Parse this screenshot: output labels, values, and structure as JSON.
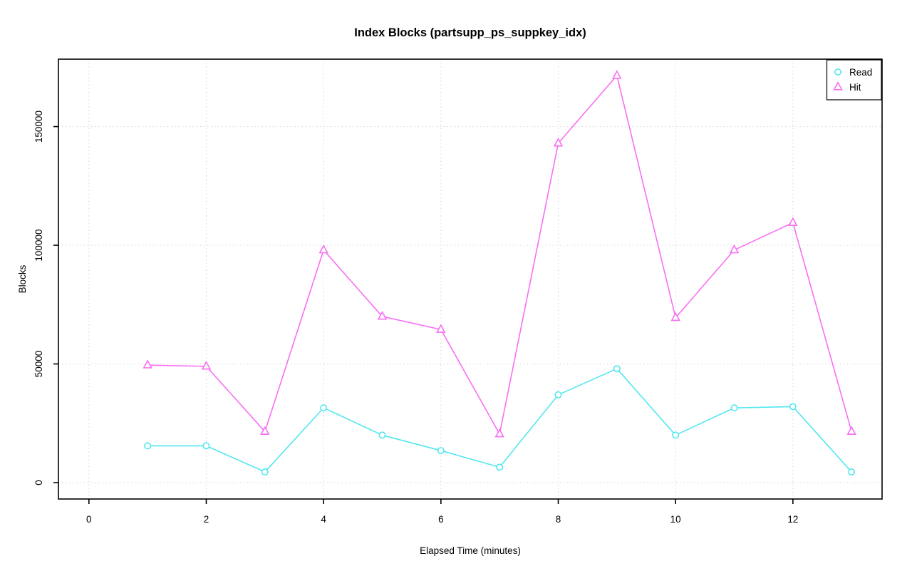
{
  "figure": {
    "background": "#ffffff",
    "axis_color": "#000000",
    "text_color": "#000000",
    "grid_color": "#d6d6d6"
  },
  "chart_data": {
    "type": "line",
    "title": "Index Blocks (partsupp_ps_suppkey_idx)",
    "xlabel": "Elapsed Time (minutes)",
    "ylabel": "Blocks",
    "x": [
      1,
      2,
      3,
      4,
      5,
      6,
      7,
      8,
      9,
      10,
      11,
      12,
      13
    ],
    "series": [
      {
        "name": "Read",
        "marker": "circle",
        "color": "#52E7EF",
        "values": [
          15500,
          15500,
          4500,
          31500,
          20000,
          13500,
          6500,
          37000,
          48000,
          20000,
          31500,
          32000,
          4500
        ]
      },
      {
        "name": "Hit",
        "marker": "triangle",
        "color": "#F96EF5",
        "values": [
          49500,
          49000,
          21500,
          98000,
          70000,
          64500,
          20500,
          143000,
          171500,
          69500,
          98000,
          109500,
          21500
        ]
      }
    ],
    "x_ticks": [
      0,
      2,
      4,
      6,
      8,
      10,
      12
    ],
    "x_tick_labels": [
      "0",
      "2",
      "4",
      "6",
      "8",
      "10",
      "12"
    ],
    "y_ticks": [
      0,
      50000,
      100000,
      150000
    ],
    "y_tick_labels": [
      "0",
      "50000",
      "100000",
      "150000"
    ],
    "xlim": [
      -0.52,
      13.52
    ],
    "ylim": [
      -6900,
      178400
    ],
    "grid": true,
    "grid_style": "dotted",
    "legend_position": "top-right",
    "legend": [
      "Read",
      "Hit"
    ]
  }
}
